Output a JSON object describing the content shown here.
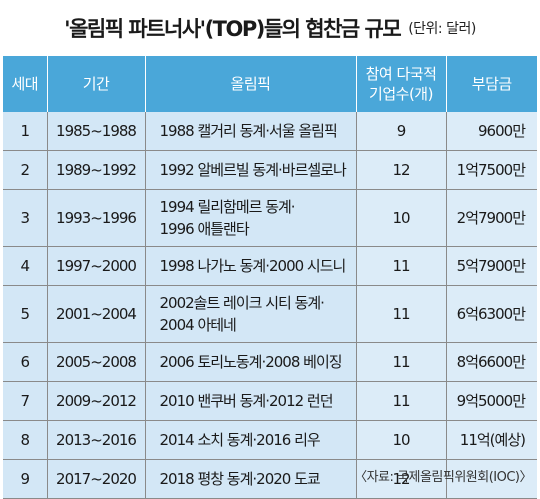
{
  "header": {
    "title": "'올림픽 파트너사'(TOP)들의 협찬금 규모",
    "unit": "(단위: 달러)"
  },
  "table": {
    "columns": {
      "generation": "세대",
      "period": "기간",
      "olympic": "올림픽",
      "companies_line1": "참여 다국적",
      "companies_line2": "기업수(개)",
      "amount": "부담금"
    },
    "rows": [
      {
        "gen": "1",
        "period": "1985~1988",
        "olympic": [
          "1988 캘거리 동계·서울 올림픽"
        ],
        "companies": "9",
        "amount": "9600만"
      },
      {
        "gen": "2",
        "period": "1989~1992",
        "olympic": [
          "1992 알베르빌 동계·바르셀로나"
        ],
        "companies": "12",
        "amount": "1억7500만"
      },
      {
        "gen": "3",
        "period": "1993~1996",
        "olympic": [
          "1994 릴리함메르 동계·",
          "1996 애틀랜타"
        ],
        "companies": "10",
        "amount": "2억7900만"
      },
      {
        "gen": "4",
        "period": "1997~2000",
        "olympic": [
          "1998 나가노 동계·2000 시드니"
        ],
        "companies": "11",
        "amount": "5억7900만"
      },
      {
        "gen": "5",
        "period": "2001~2004",
        "olympic": [
          "2002솔트 레이크 시티 동계·",
          "2004 아테네"
        ],
        "companies": "11",
        "amount": "6억6300만"
      },
      {
        "gen": "6",
        "period": "2005~2008",
        "olympic": [
          "2006 토리노동계·2008 베이징"
        ],
        "companies": "11",
        "amount": "8억6600만"
      },
      {
        "gen": "7",
        "period": "2009~2012",
        "olympic": [
          "2010 밴쿠버 동계·2012 런던"
        ],
        "companies": "11",
        "amount": "9억5000만"
      },
      {
        "gen": "8",
        "period": "2013~2016",
        "olympic": [
          "2014 소치 동계·2016 리우"
        ],
        "companies": "10",
        "amount": "11억(예상)"
      },
      {
        "gen": "9",
        "period": "2017~2020",
        "olympic": [
          "2018 평창 동계·2020 도쿄"
        ],
        "companies": "12",
        "amount": ""
      }
    ]
  },
  "footer": {
    "source": "〈자료: 국제올림픽위원회(IOC)〉"
  }
}
